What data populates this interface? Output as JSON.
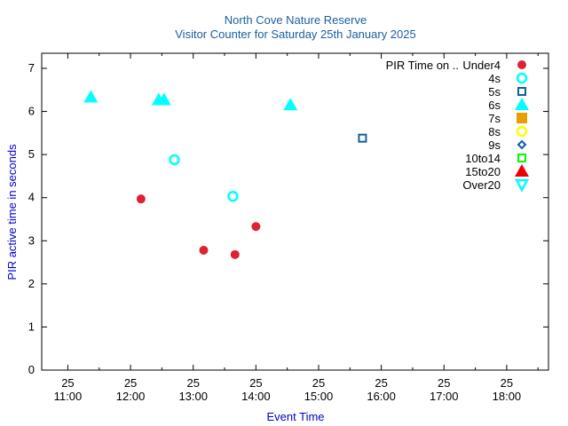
{
  "chart_data": {
    "type": "scatter",
    "title_line1": "North Cove Nature Reserve",
    "title_line2": "Visitor Counter for Saturday 25th January 2025",
    "xlabel": "Event Time",
    "ylabel": "PIR active time in seconds",
    "xlim": [
      "10:35",
      "18:40"
    ],
    "ylim": [
      0,
      7.35
    ],
    "x_ticks": [
      {
        "day": "25",
        "time": "11:00"
      },
      {
        "day": "25",
        "time": "12:00"
      },
      {
        "day": "25",
        "time": "13:00"
      },
      {
        "day": "25",
        "time": "14:00"
      },
      {
        "day": "25",
        "time": "15:00"
      },
      {
        "day": "25",
        "time": "16:00"
      },
      {
        "day": "25",
        "time": "17:00"
      },
      {
        "day": "25",
        "time": "18:00"
      }
    ],
    "y_ticks": [
      "0",
      "1",
      "2",
      "3",
      "4",
      "5",
      "6",
      "7"
    ],
    "legend_title": "PIR Time on ..",
    "legend_position": "top-right",
    "grid": false,
    "series": [
      {
        "name": "Under4",
        "marker": "filled-circle",
        "color": "#dd2233",
        "points": [
          {
            "x": "12:10",
            "y": 3.97
          },
          {
            "x": "13:10",
            "y": 2.78
          },
          {
            "x": "13:40",
            "y": 2.68
          },
          {
            "x": "14:00",
            "y": 3.33
          }
        ]
      },
      {
        "name": "4s",
        "marker": "open-circle",
        "color": "#00ffff",
        "points": [
          {
            "x": "12:42",
            "y": 4.88
          },
          {
            "x": "13:38",
            "y": 4.03
          }
        ]
      },
      {
        "name": "5s",
        "marker": "open-square",
        "color": "#1060a0",
        "points": [
          {
            "x": "15:42",
            "y": 5.38
          }
        ]
      },
      {
        "name": "6s",
        "marker": "filled-triangle-up",
        "color": "#00ffff",
        "points": [
          {
            "x": "11:22",
            "y": 6.33
          },
          {
            "x": "12:27",
            "y": 6.27
          },
          {
            "x": "12:32",
            "y": 6.27
          },
          {
            "x": "14:33",
            "y": 6.15
          }
        ]
      },
      {
        "name": "7s",
        "marker": "filled-square",
        "color": "#e8a000",
        "points": []
      },
      {
        "name": "8s",
        "marker": "open-circle",
        "color": "#ffff00",
        "points": []
      },
      {
        "name": "9s",
        "marker": "open-diamond",
        "color": "#1060a0",
        "points": []
      },
      {
        "name": "10to14",
        "marker": "open-square",
        "color": "#00ff00",
        "points": []
      },
      {
        "name": "15to20",
        "marker": "filled-triangle-up",
        "color": "#ee0000",
        "points": []
      },
      {
        "name": "Over20",
        "marker": "open-triangle-down",
        "color": "#00ffff",
        "points": []
      }
    ],
    "colors": {
      "title": "#1a5fa0",
      "axis_label": "#0000cc",
      "axis": "#000000",
      "text": "#000000"
    }
  }
}
